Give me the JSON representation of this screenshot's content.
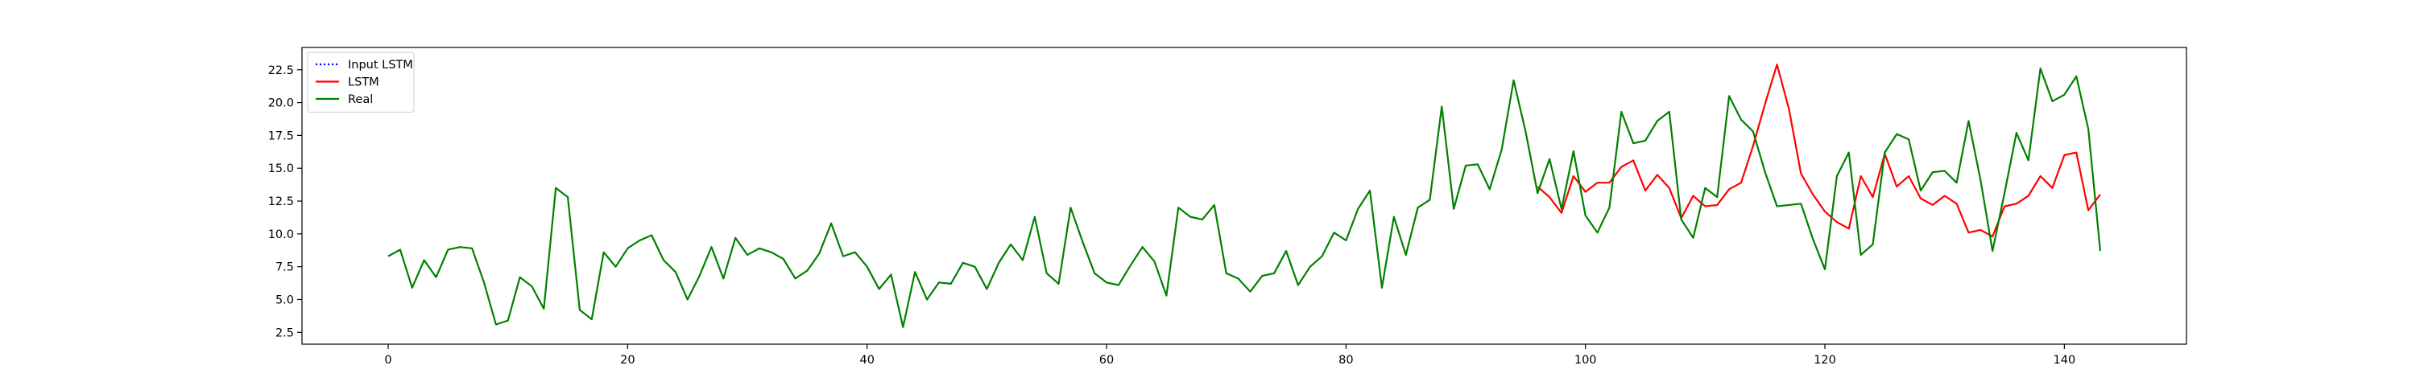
{
  "chart_data": {
    "type": "line",
    "title": "",
    "xlabel": "",
    "ylabel": "",
    "xlim": [
      -7.2,
      150.2
    ],
    "ylim": [
      1.6,
      24.2
    ],
    "x_ticks": [
      0,
      20,
      40,
      60,
      80,
      100,
      120,
      140
    ],
    "y_ticks": [
      2.5,
      5.0,
      7.5,
      10.0,
      12.5,
      15.0,
      17.5,
      20.0,
      22.5
    ],
    "grid": false,
    "legend": "top-left",
    "series": [
      {
        "name": "Input LSTM",
        "color": "#0000ff",
        "style": "dotted",
        "x_start": 0,
        "values": []
      },
      {
        "name": "LSTM",
        "color": "#ff0000",
        "style": "solid",
        "x_start": 96,
        "values": [
          13.6,
          12.8,
          11.6,
          14.4,
          13.2,
          13.9,
          13.9,
          15.1,
          15.6,
          13.3,
          14.5,
          13.5,
          11.2,
          12.9,
          12.1,
          12.2,
          13.4,
          13.9,
          16.7,
          19.9,
          22.9,
          19.5,
          14.6,
          13.0,
          11.7,
          10.9,
          10.4,
          14.4,
          12.8,
          16.1,
          13.6,
          14.4,
          12.7,
          12.2,
          12.9,
          12.3,
          10.1,
          10.3,
          9.8,
          12.1,
          12.3,
          12.9,
          14.4,
          13.5,
          16.0,
          16.2,
          11.8,
          13.0
        ]
      },
      {
        "name": "Real",
        "color": "#008000",
        "style": "solid",
        "x_start": 0,
        "values": [
          8.3,
          8.8,
          5.9,
          8.0,
          6.7,
          8.8,
          9.0,
          8.9,
          6.3,
          3.1,
          3.4,
          6.7,
          6.0,
          4.3,
          13.5,
          12.8,
          4.2,
          3.5,
          8.6,
          7.5,
          8.9,
          9.5,
          9.9,
          8.0,
          7.1,
          5.0,
          6.8,
          9.0,
          6.6,
          9.7,
          8.4,
          8.9,
          8.6,
          8.1,
          6.6,
          7.2,
          8.5,
          10.8,
          8.3,
          8.6,
          7.5,
          5.8,
          6.9,
          2.9,
          7.1,
          5.0,
          6.3,
          6.2,
          7.8,
          7.5,
          5.8,
          7.8,
          9.2,
          8.0,
          11.3,
          7.0,
          6.2,
          12.0,
          9.4,
          7.0,
          6.3,
          6.1,
          7.6,
          9.0,
          7.9,
          5.3,
          12.0,
          11.3,
          11.1,
          12.2,
          7.0,
          6.6,
          5.6,
          6.8,
          7.0,
          8.7,
          6.1,
          7.5,
          8.3,
          10.1,
          9.5,
          11.9,
          13.3,
          5.9,
          11.3,
          8.4,
          12.0,
          12.6,
          19.7,
          11.9,
          15.2,
          15.3,
          13.4,
          16.4,
          21.7,
          17.8,
          13.1,
          15.7,
          11.9,
          16.3,
          11.4,
          10.1,
          12.0,
          19.3,
          16.9,
          17.1,
          18.6,
          19.3,
          11.1,
          9.7,
          13.5,
          12.8,
          20.5,
          18.7,
          17.8,
          14.7,
          12.1,
          12.2,
          12.3,
          9.6,
          7.3,
          14.4,
          16.2,
          8.4,
          9.2,
          16.2,
          17.6,
          17.2,
          13.3,
          14.7,
          14.8,
          13.9,
          18.6,
          14.1,
          8.7,
          13.1,
          17.7,
          15.6,
          22.6,
          20.1,
          20.6,
          22.0,
          18.0,
          8.7
        ]
      }
    ]
  }
}
